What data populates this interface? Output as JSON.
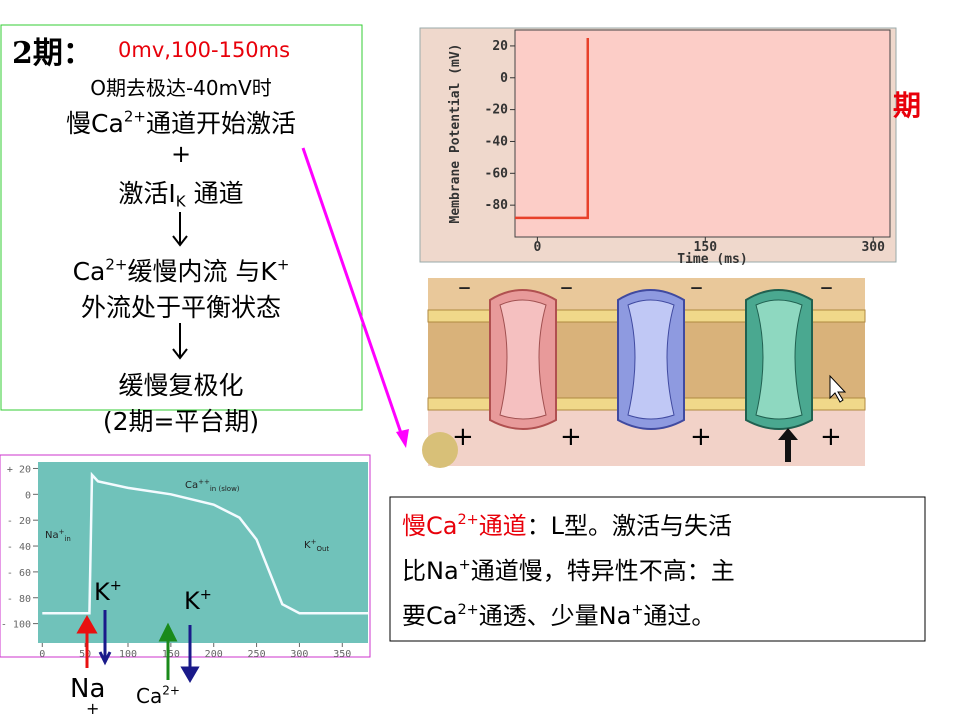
{
  "left_box": {
    "heading": "2期：",
    "range": "0mv,100-150ms",
    "line1": "O期去极达-40mV时",
    "line2": [
      "慢Ca",
      "2+",
      "通道开始激活"
    ],
    "plus": "+",
    "line3": [
      "激活I",
      "K",
      " 通道"
    ],
    "line4": [
      "Ca",
      "2+",
      "缓慢内流 与K",
      "+"
    ],
    "line5": "外流处于平衡状态",
    "line6": "缓慢复极化",
    "line7": "(2期=平台期)"
  },
  "side_text": "期",
  "membrane": {
    "top_signs": [
      "–",
      "–",
      "–",
      "–"
    ],
    "bottom_signs": [
      "+",
      "+",
      "+",
      "+"
    ]
  },
  "note_box": {
    "line1": [
      "慢Ca",
      "2+",
      "通道",
      "：L型。激活与失活"
    ],
    "line2": [
      "比Na",
      "+",
      "通道慢，特异性不高：主"
    ],
    "line3": [
      "要Ca",
      "2+",
      "通透、少量Na",
      "+",
      "通过。"
    ]
  },
  "ion_labels": {
    "k1": [
      "K",
      "+"
    ],
    "k2": [
      "K",
      "+"
    ],
    "na": [
      "Na",
      "+"
    ],
    "ca": [
      "Ca",
      "2+"
    ]
  },
  "chart_data": [
    {
      "type": "line",
      "y_label": "Membrane Potential (mV)",
      "x_label": "Time (ms)",
      "x": [
        -20,
        45,
        45
      ],
      "series": [
        {
          "color": "#e8402a",
          "values": [
            -88,
            -88,
            25
          ]
        }
      ],
      "xlim": [
        -20,
        315
      ],
      "ylim": [
        -100,
        30
      ],
      "xticks": [
        0,
        150,
        300
      ],
      "yticks": [
        20,
        0,
        -20,
        -40,
        -60,
        -80
      ]
    },
    {
      "type": "line",
      "annotations": [
        [
          "Ca",
          "++",
          "in (slow)"
        ],
        [
          "Na",
          "+",
          "in"
        ],
        [
          "K",
          "+",
          "Out"
        ]
      ],
      "x": [
        0,
        55,
        58,
        65,
        100,
        150,
        200,
        230,
        250,
        265,
        280,
        300,
        380
      ],
      "series": [
        {
          "color": "#f4fbff",
          "values": [
            -92,
            -92,
            15,
            10,
            5,
            0,
            -8,
            -18,
            -35,
            -60,
            -85,
            -92,
            -92
          ]
        }
      ],
      "xlim": [
        -5,
        380
      ],
      "ylim": [
        -115,
        25
      ],
      "xticks": [
        0,
        50,
        100,
        150,
        200,
        250,
        300,
        350
      ],
      "yticks": [
        {
          "value": 20,
          "label": "+ 20"
        },
        0,
        {
          "value": -20,
          "label": "- 20"
        },
        {
          "value": -40,
          "label": "- 40"
        },
        {
          "value": -60,
          "label": "- 60"
        },
        {
          "value": -80,
          "label": "- 80"
        },
        {
          "value": -100,
          "label": "- 100"
        }
      ]
    }
  ]
}
